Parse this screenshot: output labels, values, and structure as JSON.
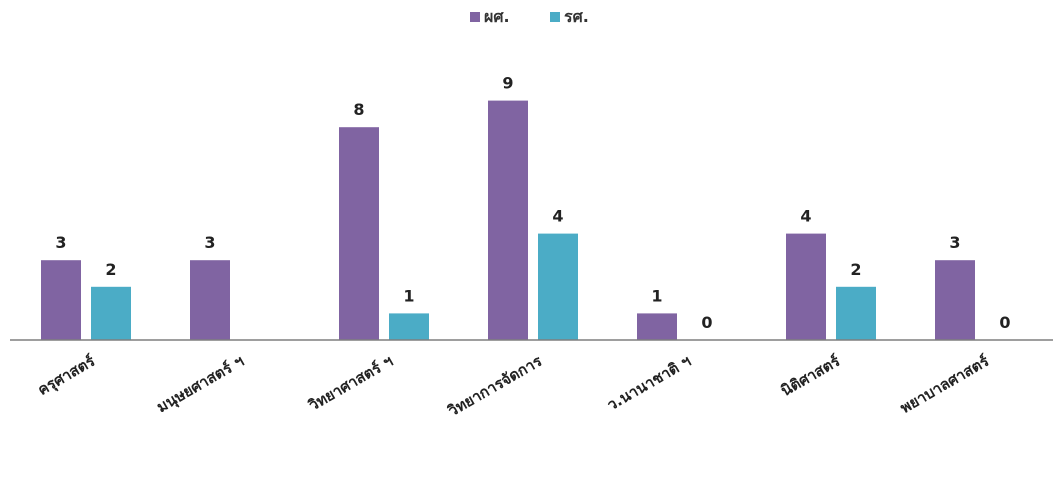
{
  "chart_data": {
    "type": "bar",
    "categories": [
      "ครุศาสตร์",
      "มนุษยศาสตร์ ฯ",
      "วิทยาศาสตร์ ฯ",
      "วิทยาการจัดการ",
      "ว.นานาชาติ ฯ",
      "นิติศาสตร์",
      "พยาบาลศาสตร์"
    ],
    "series": [
      {
        "name": "ผศ.",
        "color": "#8064a2",
        "values": [
          3,
          3,
          8,
          9,
          1,
          4,
          3
        ],
        "labels": [
          "3",
          "3",
          "8",
          "9",
          "1",
          "4",
          "3"
        ]
      },
      {
        "name": "รศ.",
        "color": "#4bacc6",
        "values": [
          2,
          null,
          1,
          4,
          0,
          2,
          0
        ],
        "labels": [
          "2",
          null,
          "1",
          "4",
          "0",
          "2",
          "0"
        ]
      }
    ],
    "ylim": [
      0,
      10
    ],
    "grid": false,
    "legend": "top-center",
    "axis_color": "#7f7f7f"
  }
}
